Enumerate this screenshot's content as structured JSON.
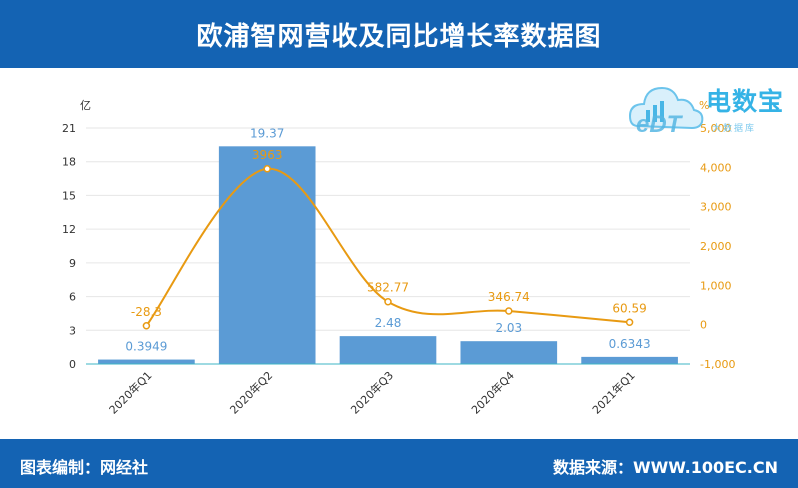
{
  "header": {
    "title": "欧浦智网营收及同比增长率数据图"
  },
  "footer": {
    "left_text": "图表编制：网经社",
    "right_text": "数据来源：WWW.100EC.CN"
  },
  "logo": {
    "name": "电数宝",
    "subtitle": "大数据库",
    "mark_text": "eDT"
  },
  "colors": {
    "bar": "#5b9bd5",
    "line": "#e89a12",
    "header_bg": "#1463b3"
  },
  "chart_data": {
    "type": "bar+line",
    "categories": [
      "2020年Q1",
      "2020年Q2",
      "2020年Q3",
      "2020年Q4",
      "2021年Q1"
    ],
    "series": [
      {
        "type": "bar",
        "axis": "left",
        "values": [
          0.3949,
          19.37,
          2.48,
          2.03,
          0.6343
        ],
        "labels": [
          "0.3949",
          "19.37",
          "2.48",
          "2.03",
          "0.6343"
        ]
      },
      {
        "type": "line",
        "axis": "right",
        "values": [
          -28.3,
          3963,
          582.77,
          346.74,
          60.59
        ],
        "labels": [
          "-28.3",
          "3963",
          "582.77",
          "346.74",
          "60.59"
        ]
      }
    ],
    "y_left": {
      "unit": "亿",
      "ylim": [
        0,
        21
      ],
      "ticks": [
        "0",
        "3",
        "6",
        "9",
        "12",
        "15",
        "18",
        "21"
      ]
    },
    "y_right": {
      "unit": "%",
      "ylim": [
        -1000,
        5000
      ],
      "ticks": [
        "-1,000",
        "0",
        "1,000",
        "2,000",
        "3,000",
        "4,000",
        "5,000"
      ]
    },
    "grid": true
  }
}
